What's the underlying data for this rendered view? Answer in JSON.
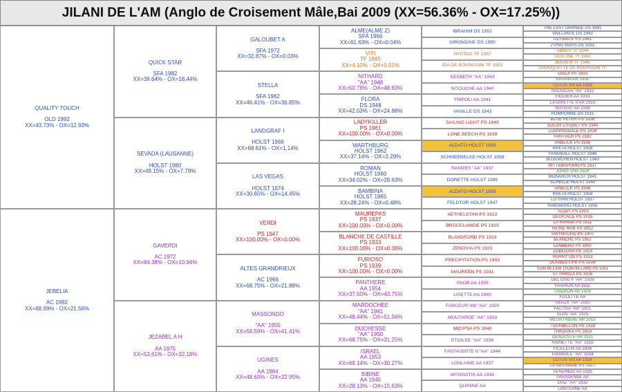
{
  "title": "JILANI DE L'AM (Anglo de Croisement Mâle,Bai  2009 (XX=56.36% - OX=17.25%))",
  "generations": [
    [
      {
        "lines": [
          "QUALITY TOUCH",
          "OLD 1992",
          "XX=43.73% - OX=12.93%"
        ],
        "color": "#2a4fc4"
      },
      {
        "lines": [
          "JEBELIA",
          "AC 1992",
          "XX=68.99% - OX=21.56%"
        ],
        "color": "#2a4fc4"
      }
    ],
    [
      {
        "lines": [
          "QUICK STAR",
          "SFA 1982",
          "XX=39.64% - OX=18.44%"
        ],
        "color": "#2a4fc4"
      },
      {
        "lines": [
          "SEVADA (LAUSANNE)",
          "HOLST 1980",
          "XX=49.15% - OX=7.79%"
        ],
        "color": "#2a4fc4"
      },
      {
        "lines": [
          "GAVERDI",
          "AC 1972",
          "XX=84.38% - OX=10.94%"
        ],
        "color": "#9b2fc4"
      },
      {
        "lines": [
          "JEZABEL A H",
          "AA 1975",
          "XX=53.61% - OX=32.18%"
        ],
        "color": "#9b2fc4"
      }
    ],
    [
      {
        "lines": [
          "GALOUBET A",
          "SFA 1972",
          "XX=32.87% - OX=0.03%"
        ],
        "color": "#2a4fc4"
      },
      {
        "lines": [
          "STELLA",
          "SFA 1962",
          "XX=46.41% - OX=36.85%"
        ],
        "color": "#2a4fc4"
      },
      {
        "lines": [
          "LANDGRAF I",
          "HOLST 1966",
          "XX=68.61% - OX=1.14%"
        ],
        "color": "#2a4fc4"
      },
      {
        "lines": [
          "LAS VEGAS",
          "HOLST 1974",
          "XX=30.65% - OX=14.45%"
        ],
        "color": "#2a4fc4"
      },
      {
        "lines": [
          "VERDI",
          "PS 1947",
          "XX=100.00% - OX=0.00%"
        ],
        "color": "#d42020"
      },
      {
        "lines": [
          "ALTES GRANDRIEUX",
          "AC 1966",
          "XX=68.75% - OX=21.88%"
        ],
        "color": "#2a4fc4"
      },
      {
        "lines": [
          "MASSONDO",
          "\"AA\" 1955",
          "XX=58.59% - OX=41.41%"
        ],
        "color": "#9b2fc4"
      },
      {
        "lines": [
          "UGINES",
          "AA 1964",
          "XX=48.63% - OX=22.95%"
        ],
        "color": "#9b2fc4"
      }
    ],
    [
      {
        "lines": [
          "ALME(ALME Z)",
          "SFA 1966",
          "XX=61.63% - OX=0.04%"
        ],
        "color": "#2a4fc4"
      },
      {
        "lines": [
          "VITI",
          "TF 1965",
          "XX=4.10% - OX=0.01%"
        ],
        "color": "#e0701a"
      },
      {
        "lines": [
          "NITHARD",
          "\"AA\" 1948",
          "XX=50.78% - OX=48.83%"
        ],
        "color": "#9b2fc4"
      },
      {
        "lines": [
          "FLORA",
          "DS 1948",
          "XX=42.03% - OX=24.88%"
        ],
        "color": "#2a4fc4"
      },
      {
        "lines": [
          "LADYKILLER",
          "PS 1961",
          "XX=100.00% - OX=0.00%"
        ],
        "color": "#d42020"
      },
      {
        "lines": [
          "WARTHBURG",
          "HOLST 1962",
          "XX=37.14% - OX=2.29%"
        ],
        "color": "#2a4fc4"
      },
      {
        "lines": [
          "ROMAN",
          "HOLST 1960",
          "XX=34.02% - OX=28.63%"
        ],
        "color": "#2a4fc4"
      },
      {
        "lines": [
          "BAMBINA",
          "HOLST 1965",
          "XX=28.24% - OX=0.48%"
        ],
        "color": "#2a4fc4"
      },
      {
        "lines": [
          "MAUREPAS",
          "PS 1937",
          "XX=100.00% - OX=0.00%"
        ],
        "color": "#d42020"
      },
      {
        "lines": [
          "BLANCHE DE CASTILLE",
          "PS 1933",
          "XX=100.00% - OX=0.00%"
        ],
        "color": "#d42020"
      },
      {
        "lines": [
          "FURIOSO",
          "PS 1939",
          "XX=100.00% - OX=0.00%"
        ],
        "color": "#d42020"
      },
      {
        "lines": [
          "PANTHERE",
          "AA 1954",
          "XX=37.50% - OX=43.75%"
        ],
        "color": "#9b2fc4"
      },
      {
        "lines": [
          "MARDOCHEE",
          "\"AA\" 1941",
          "XX=48.44% - OX=51.56%"
        ],
        "color": "#9b2fc4"
      },
      {
        "lines": [
          "DUCHESSE",
          "\"AA\" 1950",
          "XX=68.75% - OX=31.25%"
        ],
        "color": "#9b2fc4"
      },
      {
        "lines": [
          "ISRAEL",
          "AA 1953",
          "XX=69.14% - OX=30.27%"
        ],
        "color": "#9b2fc4"
      },
      {
        "lines": [
          "BIBINE",
          "AA 1945",
          "XX=28.13% - OX=15.63%"
        ],
        "color": "#9b2fc4"
      }
    ],
    [
      {
        "lines": [
          "IBRAHIM DS 1952"
        ],
        "color": "#2a4fc4"
      },
      {
        "lines": [
          "GIRONDINE DS 1950"
        ],
        "color": "#2a4fc4"
      },
      {
        "lines": [
          "NYSTAG TF 1957"
        ],
        "color": "#e0701a"
      },
      {
        "lines": [
          "IDA DE BOURGOIN TF 1952"
        ],
        "color": "#e0701a"
      },
      {
        "lines": [
          "KESBETH \"AA\" 1943"
        ],
        "color": "#9b2fc4"
      },
      {
        "lines": [
          "NITOUCHE AA 1940"
        ],
        "color": "#9b2fc4"
      },
      {
        "lines": [
          "TRIPOLI AA 1941"
        ],
        "color": "#9b2fc4"
      },
      {
        "lines": [
          "VANILLE DS 1943"
        ],
        "color": "#2a4fc4"
      },
      {
        "lines": [
          "SAILING LIGHT PS 1949"
        ],
        "color": "#d42020"
      },
      {
        "lines": [
          "LONE BEECH PS 1939"
        ],
        "color": "#d42020"
      },
      {
        "lines": [
          "ALDATO HOLST 1958"
        ],
        "color": "#2a4fc4",
        "highlight": true
      },
      {
        "lines": [
          "SCHNEENELKE HOLST 1958"
        ],
        "color": "#2a4fc4"
      },
      {
        "lines": [
          "RAMZES \"AA\" 1937"
        ],
        "color": "#9b2fc4"
      },
      {
        "lines": [
          "DORETTE HOLST 1945"
        ],
        "color": "#2a4fc4"
      },
      {
        "lines": [
          "ALDATO HOLST 1958"
        ],
        "color": "#2a4fc4",
        "highlight": true
      },
      {
        "lines": [
          "FELDTOR HOLST 1947"
        ],
        "color": "#2a4fc4"
      },
      {
        "lines": [
          "AETHELSTAN PS 1922"
        ],
        "color": "#d42020"
      },
      {
        "lines": [
          "BROCELIANDE PS 1925"
        ],
        "color": "#d42020"
      },
      {
        "lines": [
          "BLANDFORD PS 1919"
        ],
        "color": "#d42020"
      },
      {
        "lines": [
          "ZENOVIA PS 1923"
        ],
        "color": "#d42020"
      },
      {
        "lines": [
          "PRECIPITATION PS 1933"
        ],
        "color": "#d42020"
      },
      {
        "lines": [
          "MAUREEN PS 1931"
        ],
        "color": "#d42020"
      },
      {
        "lines": [
          "SNOB AA 1938"
        ],
        "color": "#9b2fc4"
      },
      {
        "lines": [
          "LISETTE AA 1940"
        ],
        "color": "#9b2fc4"
      },
      {
        "lines": [
          "FARCEUR VIII \"AA\" 1929"
        ],
        "color": "#9b2fc4"
      },
      {
        "lines": [
          "MOUTARDE \"AA\" 1933"
        ],
        "color": "#9b2fc4"
      },
      {
        "lines": [
          "MICIPSA PS 1940"
        ],
        "color": "#d42020"
      },
      {
        "lines": [
          "ETOILEE \"AA\" 1936"
        ],
        "color": "#9b2fc4"
      },
      {
        "lines": [
          "FANTAISISTE II \"AA\" 1944"
        ],
        "color": "#9b2fc4"
      },
      {
        "lines": [
          "LONLAINE AA 1937"
        ],
        "color": "#9b2fc4"
      },
      {
        "lines": [
          "MYOSOTIS AA 1934"
        ],
        "color": "#9b2fc4"
      },
      {
        "lines": [
          "QUININE AA"
        ],
        "color": "#9b2fc4"
      }
    ],
    [
      {
        "lines": [
          "THE LAST ORANGE DS 1941"
        ],
        "color": "#2a4fc4"
      },
      {
        "lines": [
          "VAILLANTE DS 1943"
        ],
        "color": "#2a4fc4"
      },
      {
        "lines": [
          "ULTIMATE PS 1941"
        ],
        "color": "#d42020"
      },
      {
        "lines": [
          "J'VINS MARS DS 1931"
        ],
        "color": "#2a4fc4"
      },
      {
        "lines": [
          "ABNER TF 1944"
        ],
        "color": "#e0701a"
      },
      {
        "lines": [
          "GUSTINE TF 1950"
        ],
        "color": "#e0701a"
      },
      {
        "lines": [
          "BOUM III TF 1945"
        ],
        "color": "#e0701a"
      },
      {
        "lines": [
          "CHOUQUETTE DE BOURGOIN TF"
        ],
        "color": "#e0701a"
      },
      {
        "lines": [
          "DADJI PS 1933"
        ],
        "color": "#d42020"
      },
      {
        "lines": [
          "KRAINA AR 1932"
        ],
        "color": "#2e9a2e"
      },
      {
        "lines": [
          "LOTUS VIII AA 1928"
        ],
        "color": "#9b2fc4",
        "highlight": true
      },
      {
        "lines": [
          "NAUSICAA \"AA\" 1932"
        ],
        "color": "#9b2fc4"
      },
      {
        "lines": [
          "FIGUIER AA 1933"
        ],
        "color": "#9b2fc4"
      },
      {
        "lines": [
          "LA DIVETTE II AA 1933"
        ],
        "color": "#9b2fc4"
      },
      {
        "lines": [
          "NOUGAT AA 1938"
        ],
        "color": "#9b2fc4"
      },
      {
        "lines": [
          "POMPONNE DS 1915"
        ],
        "color": "#2a4fc4"
      },
      {
        "lines": [
          "BLUE PETER PS 1936"
        ],
        "color": "#d42020"
      },
      {
        "lines": [
          "SOLAR CYGNET PS 1940"
        ],
        "color": "#d42020"
      },
      {
        "lines": [
          "LOANINGDALE PS 1929"
        ],
        "color": "#d42020"
      },
      {
        "lines": [
          "FARTUCH PS 1932"
        ],
        "color": "#d42020"
      },
      {
        "lines": [
          "ANBLICK PS 1938"
        ],
        "color": "#d42020"
      },
      {
        "lines": [
          "KRETA HOLST 1958"
        ],
        "color": "#2a4fc4"
      },
      {
        "lines": [
          "FANGBALL HOLST 1946"
        ],
        "color": "#2a4fc4"
      },
      {
        "lines": [
          "BLUEMCHEN HOLST 1943"
        ],
        "color": "#2a4fc4"
      },
      {
        "lines": [
          "RITTERSPORN PS 1917"
        ],
        "color": "#d42020"
      },
      {
        "lines": [
          "JORDI SHA 1928"
        ],
        "color": "#2e9a2e"
      },
      {
        "lines": [
          "MONARCH HOLST 1941"
        ],
        "color": "#2a4fc4"
      },
      {
        "lines": [
          "SCHELLE HOLST 1940"
        ],
        "color": "#2a4fc4"
      },
      {
        "lines": [
          "ANBLICK PS 1938"
        ],
        "color": "#d42020"
      },
      {
        "lines": [
          "KRETA HOLST 1958"
        ],
        "color": "#2a4fc4"
      },
      {
        "lines": [
          "LOTHAR HOLST 1937"
        ],
        "color": "#2a4fc4"
      },
      {
        "lines": [
          "HABSBURG HOLST 1935"
        ],
        "color": "#2a4fc4"
      },
      {
        "lines": [
          "TEDDY PS 1913"
        ],
        "color": "#d42020"
      },
      {
        "lines": [
          "DEDICACE PS 1915"
        ],
        "color": "#d42020"
      },
      {
        "lines": [
          "LA FARINA PS 1911"
        ],
        "color": "#d42020"
      },
      {
        "lines": [
          "REINE MAB PS 1912"
        ],
        "color": "#d42020"
      },
      {
        "lines": [
          "SWYNFORD PS 1907"
        ],
        "color": "#d42020"
      },
      {
        "lines": [
          "BLANCHE PS 1912"
        ],
        "color": "#d42020"
      },
      {
        "lines": [
          "LEMBERG PS 1907"
        ],
        "color": "#d42020"
      },
      {
        "lines": [
          "ZOBEIDAH PS 1914"
        ],
        "color": "#d42020"
      },
      {
        "lines": [
          "HURRY ON PS 1913"
        ],
        "color": "#d42020"
      },
      {
        "lines": [
          "DOUBLE LIFE PS 1926"
        ],
        "color": "#d42020"
      },
      {
        "lines": [
          "SON IN LAW (SON-IN-LAW) PS 1911"
        ],
        "color": "#d42020"
      },
      {
        "lines": [
          "ST PRISCA PS 1926"
        ],
        "color": "#d42020"
      },
      {
        "lines": [
          "DEL OSO II \"AA\" 1926"
        ],
        "color": "#9b2fc4"
      },
      {
        "lines": [
          "FASHION AA 1931"
        ],
        "color": "#9b2fc4"
      },
      {
        "lines": [
          "LISERON AR 1929"
        ],
        "color": "#2e9a2e"
      },
      {
        "lines": [
          "FOLETTE AA"
        ],
        "color": "#9b2fc4"
      },
      {
        "lines": [
          "VELOX \"AA\" 1910"
        ],
        "color": "#9b2fc4"
      },
      {
        "lines": [
          "FALTSIA \"AA\" 1921"
        ],
        "color": "#9b2fc4"
      },
      {
        "lines": [
          "VLAN \"AA\" 1925"
        ],
        "color": "#9b2fc4"
      },
      {
        "lines": [
          "MEURTRIERE AR 1915"
        ],
        "color": "#2e9a2e"
      },
      {
        "lines": [
          "TOURBILLON PS 1928"
        ],
        "color": "#d42020"
      },
      {
        "lines": [
          "THAOUKA PS 1929"
        ],
        "color": "#d42020"
      },
      {
        "lines": [
          "DENOUSTE AR 1921"
        ],
        "color": "#2e9a2e"
      },
      {
        "lines": [
          "RAINETTE \"AA\" 1916"
        ],
        "color": "#9b2fc4"
      },
      {
        "lines": [
          "FICELEUR AA 1934"
        ],
        "color": "#9b2fc4"
      },
      {
        "lines": [
          "FARIBOLE \"AA\" 1934"
        ],
        "color": "#9b2fc4"
      },
      {
        "lines": [
          "LOTUS VIII AA 1928"
        ],
        "color": "#9b2fc4",
        "highlight": true
      },
      {
        "lines": [
          "LA NEUVAINE PS 1927"
        ],
        "color": "#d42020"
      },
      {
        "lines": [
          "VENDREDI AA 1926"
        ],
        "color": "#9b2fc4"
      },
      {
        "lines": [
          "PARISIENNE AA"
        ],
        "color": "#9b2fc4"
      },
      {
        "lines": [
          "DIAZ \"AA\" 1932"
        ],
        "color": "#9b2fc4"
      },
      {
        "lines": [
          "LANTERNE AA"
        ],
        "color": "#9b2fc4"
      }
    ]
  ]
}
